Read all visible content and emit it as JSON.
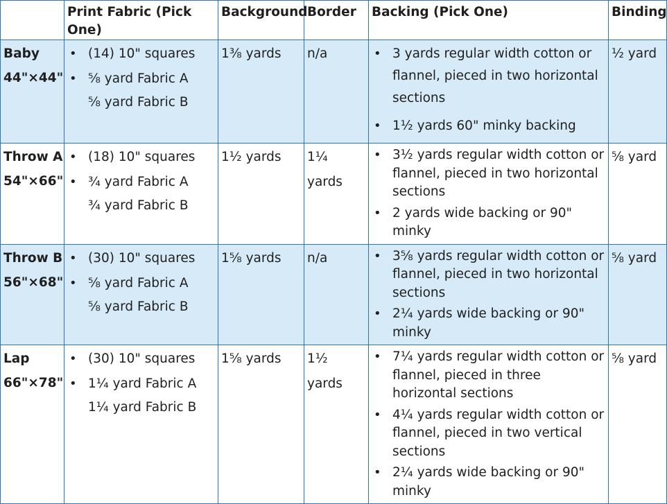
{
  "headers": [
    "",
    "Print Fabric (Pick One)",
    "Background",
    "Border",
    "Backing (Pick One)",
    "Binding"
  ],
  "rows": [
    {
      "name": "Baby",
      "dims": "44\"×44\"",
      "print": [
        "(14) 10\" squares",
        "⅝ yard Fabric A",
        "⅝ yard Fabric B"
      ],
      "background": "1⅜ yards",
      "border": "n/a",
      "backing": [
        "3 yards regular width cotton or flannel, pieced in two horizontal sections",
        "1½ yards 60\" minky backing"
      ],
      "binding": "½ yard"
    },
    {
      "name": "Throw A",
      "dims": "54\"×66\"",
      "print": [
        "(18) 10\" squares",
        "¾ yard Fabric A",
        "¾ yard Fabric B"
      ],
      "background": "1½ yards",
      "border": "1¼ yards",
      "backing": [
        "3½ yards regular width cotton or flannel, pieced in two horizontal sections",
        "2 yards wide backing or 90\" minky"
      ],
      "binding": "⅝ yard"
    },
    {
      "name": "Throw B",
      "dims": "56\"×68\"",
      "print": [
        "(30) 10\" squares",
        "⅝ yard Fabric A",
        "⅝ yard Fabric B"
      ],
      "background": "1⅝ yards",
      "border": "n/a",
      "backing": [
        "3⅝ yards regular width cotton or flannel, pieced in two horizontal sections",
        "2¼ yards wide backing or 90\" minky"
      ],
      "binding": "⅝ yard"
    },
    {
      "name": "Lap",
      "dims": "66\"×78\"",
      "print": [
        "(30) 10\" squares",
        "1¼ yard Fabric A",
        "1¼ yard Fabric B"
      ],
      "background": "1⅝ yards",
      "border": "1½ yards",
      "backing": [
        "7¼ yards regular width cotton or flannel, pieced in three horizontal sections",
        "4¼ yards regular width cotton or flannel, pieced in two vertical sections",
        "2¼ yards wide backing or 90\" minky"
      ],
      "binding": "⅝ yard"
    }
  ],
  "colors": {
    "border": "#2e75b6",
    "band": "#d6eaf8"
  }
}
